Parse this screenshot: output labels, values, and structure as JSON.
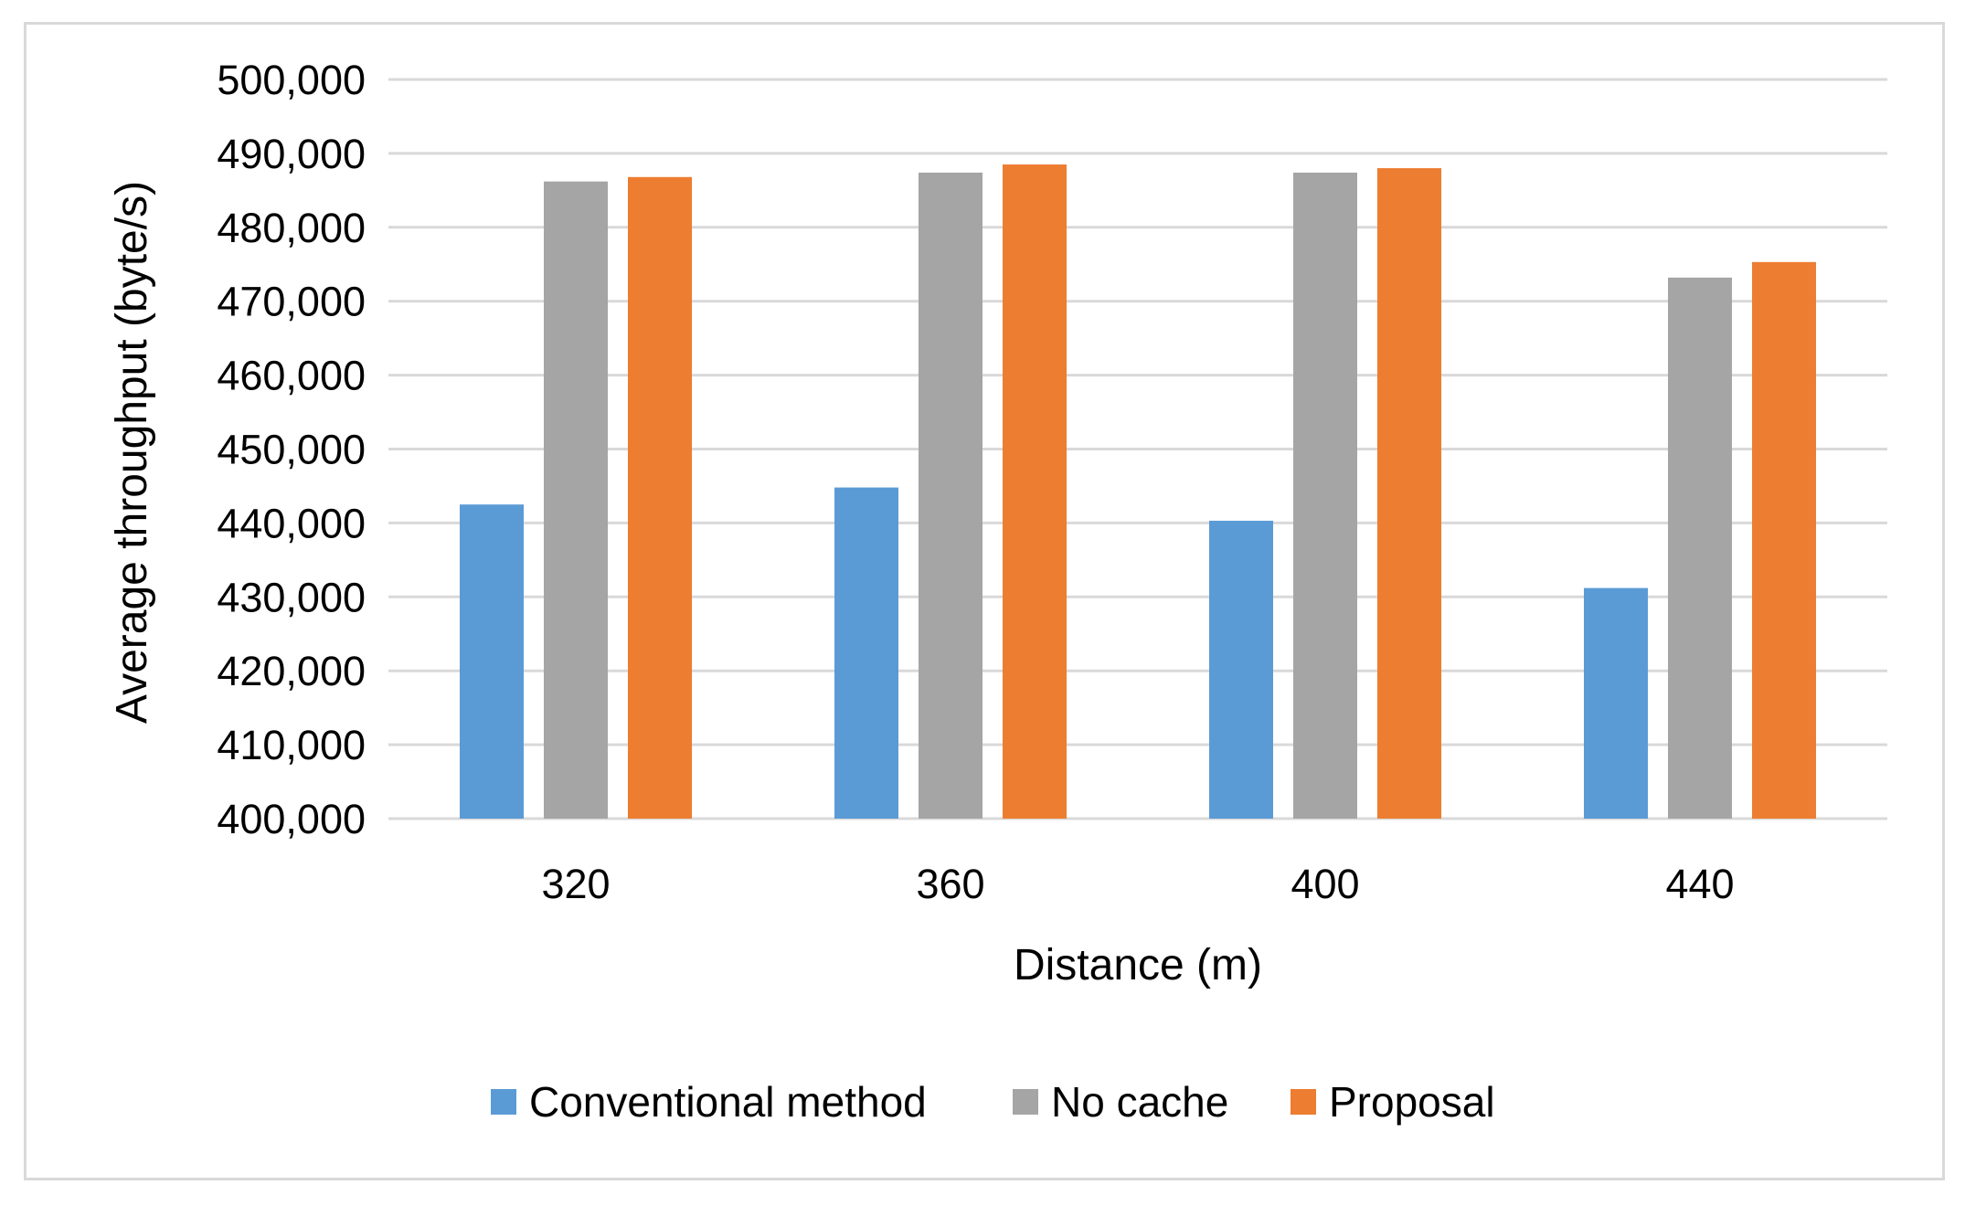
{
  "chart_data": {
    "type": "bar",
    "title": "",
    "xlabel": "Distance (m)",
    "ylabel": "Average throughput (byte/s)",
    "categories": [
      "320",
      "360",
      "400",
      "440"
    ],
    "series": [
      {
        "name": "Conventional method",
        "color": "#5b9bd5",
        "values": [
          442500,
          444800,
          440300,
          431200
        ]
      },
      {
        "name": "No cache",
        "color": "#a5a5a5",
        "values": [
          486200,
          487400,
          487400,
          473200
        ]
      },
      {
        "name": "Proposal",
        "color": "#ed7d31",
        "values": [
          486800,
          488500,
          488000,
          475300
        ]
      }
    ],
    "ylim": [
      400000,
      500000
    ],
    "yticks": [
      400000,
      410000,
      420000,
      430000,
      440000,
      450000,
      460000,
      470000,
      480000,
      490000,
      500000
    ],
    "ytick_labels": [
      "400,000",
      "410,000",
      "420,000",
      "430,000",
      "440,000",
      "450,000",
      "460,000",
      "470,000",
      "480,000",
      "490,000",
      "500,000"
    ],
    "grid": true,
    "legend_position": "bottom"
  }
}
